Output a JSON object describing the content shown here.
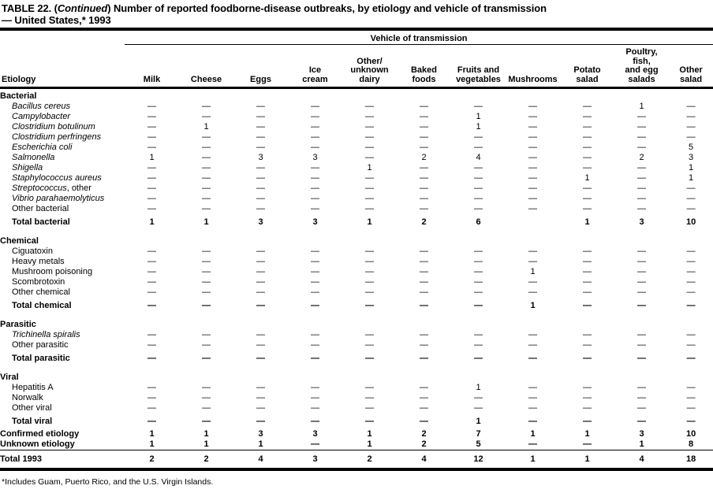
{
  "title": {
    "part1": "TABLE 22. (",
    "continued": "Continued",
    "part2": ") Number of reported foodborne-disease outbreaks, by etiology and vehicle of transmission",
    "line2": "— United States,* 1993"
  },
  "header": {
    "etiology_label": "Etiology",
    "vehicle_group_label": "Vehicle of transmission",
    "columns": [
      "Milk",
      "Cheese",
      "Eggs",
      "Ice\ncream",
      "Other/\nunknown\ndairy",
      "Baked\nfoods",
      "Fruits and\nvegetables",
      "Mushrooms",
      "Potato\nsalad",
      "Poultry,\nfish,\nand egg\nsalads",
      "Other\nsalad"
    ]
  },
  "rows": [
    {
      "type": "section",
      "i": "",
      "r": "Bacterial",
      "cells": []
    },
    {
      "type": "item",
      "i": "Bacillus cereus",
      "r": "",
      "cells": [
        "—",
        "—",
        "—",
        "—",
        "—",
        "—",
        "—",
        "—",
        "—",
        "1",
        "—"
      ]
    },
    {
      "type": "item",
      "i": "Campylobacter",
      "r": "",
      "cells": [
        "—",
        "—",
        "—",
        "—",
        "—",
        "—",
        "1",
        "—",
        "—",
        "—",
        "—"
      ]
    },
    {
      "type": "item",
      "i": "Clostridium botulinum",
      "r": "",
      "cells": [
        "—",
        "1",
        "—",
        "—",
        "—",
        "—",
        "1",
        "—",
        "—",
        "—",
        "—"
      ]
    },
    {
      "type": "item",
      "i": "Clostridium perfringens",
      "r": "",
      "cells": [
        "—",
        "—",
        "—",
        "—",
        "—",
        "—",
        "—",
        "—",
        "—",
        "—",
        "—"
      ]
    },
    {
      "type": "item",
      "i": "Escherichia coli",
      "r": "",
      "cells": [
        "—",
        "—",
        "—",
        "—",
        "—",
        "—",
        "—",
        "—",
        "—",
        "—",
        "5"
      ]
    },
    {
      "type": "item",
      "i": "Salmonella",
      "r": "",
      "cells": [
        "1",
        "—",
        "3",
        "3",
        "—",
        "2",
        "4",
        "—",
        "—",
        "2",
        "3"
      ]
    },
    {
      "type": "item",
      "i": "Shigella",
      "r": "",
      "cells": [
        "—",
        "—",
        "—",
        "—",
        "1",
        "—",
        "—",
        "—",
        "—",
        "—",
        "1"
      ]
    },
    {
      "type": "item",
      "i": "Staphylococcus aureus",
      "r": "",
      "cells": [
        "—",
        "—",
        "—",
        "—",
        "—",
        "—",
        "—",
        "—",
        "1",
        "—",
        "1"
      ]
    },
    {
      "type": "item",
      "i": "Streptococcus",
      "r": ", other",
      "cells": [
        "—",
        "—",
        "—",
        "—",
        "—",
        "—",
        "—",
        "—",
        "—",
        "—",
        "—"
      ]
    },
    {
      "type": "item",
      "i": "Vibrio parahaemolyticus",
      "r": "",
      "cells": [
        "—",
        "—",
        "—",
        "—",
        "—",
        "—",
        "—",
        "—",
        "—",
        "—",
        "—"
      ]
    },
    {
      "type": "item",
      "i": "",
      "r": "Other bacterial",
      "cells": [
        "—",
        "—",
        "—",
        "—",
        "—",
        "—",
        "—",
        "—",
        "—",
        "—",
        "—"
      ]
    },
    {
      "type": "total",
      "i": "",
      "r": "Total bacterial",
      "cells": [
        "1",
        "1",
        "3",
        "3",
        "1",
        "2",
        "6",
        "",
        "1",
        "3",
        "10"
      ]
    },
    {
      "type": "section",
      "i": "",
      "r": "Chemical",
      "cells": []
    },
    {
      "type": "item",
      "i": "",
      "r": "Ciguatoxin",
      "cells": [
        "—",
        "—",
        "—",
        "—",
        "—",
        "—",
        "—",
        "—",
        "—",
        "—",
        "—"
      ]
    },
    {
      "type": "item",
      "i": "",
      "r": "Heavy metals",
      "cells": [
        "—",
        "—",
        "—",
        "—",
        "—",
        "—",
        "—",
        "—",
        "—",
        "—",
        "—"
      ]
    },
    {
      "type": "item",
      "i": "",
      "r": "Mushroom poisoning",
      "cells": [
        "—",
        "—",
        "—",
        "—",
        "—",
        "—",
        "—",
        "1",
        "—",
        "—",
        "—"
      ]
    },
    {
      "type": "item",
      "i": "",
      "r": "Scombrotoxin",
      "cells": [
        "—",
        "—",
        "—",
        "—",
        "—",
        "—",
        "—",
        "—",
        "—",
        "—",
        "—"
      ]
    },
    {
      "type": "item",
      "i": "",
      "r": "Other chemical",
      "cells": [
        "—",
        "—",
        "—",
        "—",
        "—",
        "—",
        "—",
        "—",
        "—",
        "—",
        "—"
      ]
    },
    {
      "type": "total",
      "i": "",
      "r": "Total chemical",
      "cells": [
        "—",
        "—",
        "—",
        "—",
        "—",
        "—",
        "—",
        "1",
        "—",
        "—",
        "—"
      ]
    },
    {
      "type": "section",
      "i": "",
      "r": "Parasitic",
      "cells": []
    },
    {
      "type": "item",
      "i": "Trichinella spiralis",
      "r": "",
      "cells": [
        "—",
        "—",
        "—",
        "—",
        "—",
        "—",
        "—",
        "—",
        "—",
        "—",
        "—"
      ]
    },
    {
      "type": "item",
      "i": "",
      "r": "Other parasitic",
      "cells": [
        "—",
        "—",
        "—",
        "—",
        "—",
        "—",
        "—",
        "—",
        "—",
        "—",
        "—"
      ]
    },
    {
      "type": "total",
      "i": "",
      "r": "Total parasitic",
      "cells": [
        "—",
        "—",
        "—",
        "—",
        "—",
        "—",
        "—",
        "—",
        "—",
        "—",
        "—"
      ]
    },
    {
      "type": "section",
      "i": "",
      "r": "Viral",
      "cells": []
    },
    {
      "type": "item",
      "i": "",
      "r": "Hepatitis A",
      "cells": [
        "—",
        "—",
        "—",
        "—",
        "—",
        "—",
        "1",
        "—",
        "—",
        "—",
        "—"
      ]
    },
    {
      "type": "item",
      "i": "",
      "r": "Norwalk",
      "cells": [
        "—",
        "—",
        "—",
        "—",
        "—",
        "—",
        "—",
        "—",
        "—",
        "—",
        "—"
      ]
    },
    {
      "type": "item",
      "i": "",
      "r": "Other viral",
      "cells": [
        "—",
        "—",
        "—",
        "—",
        "—",
        "—",
        "—",
        "—",
        "—",
        "—",
        "—"
      ]
    },
    {
      "type": "total",
      "i": "",
      "r": "Total viral",
      "cells": [
        "—",
        "—",
        "—",
        "—",
        "—",
        "—",
        "1",
        "—",
        "—",
        "—",
        "—"
      ]
    },
    {
      "type": "summary",
      "i": "",
      "r": "Confirmed etiology",
      "cells": [
        "1",
        "1",
        "3",
        "3",
        "1",
        "2",
        "7",
        "1",
        "1",
        "3",
        "10"
      ]
    },
    {
      "type": "summary",
      "i": "",
      "r": "Unknown etiology",
      "cells": [
        "1",
        "1",
        "1",
        "—",
        "1",
        "2",
        "5",
        "—",
        "—",
        "1",
        "8"
      ]
    },
    {
      "type": "grand",
      "i": "",
      "r": "Total 1993",
      "cells": [
        "2",
        "2",
        "4",
        "3",
        "2",
        "4",
        "12",
        "1",
        "1",
        "4",
        "18"
      ]
    }
  ],
  "footnote": "*Includes Guam, Puerto Rico, and the U.S. Virgin Islands.",
  "colors": {
    "text": "#000000",
    "background": "#ffffff"
  }
}
